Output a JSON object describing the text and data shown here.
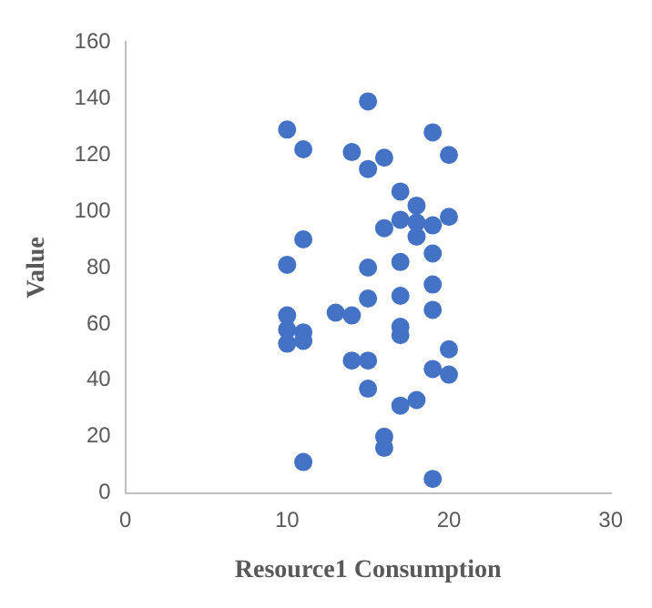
{
  "chart_data": {
    "type": "scatter",
    "xlabel": "Resource1 Consumption",
    "ylabel": "Value",
    "xlim": [
      0,
      30
    ],
    "xticks": [
      0,
      10,
      20,
      30
    ],
    "ylim": [
      0,
      160
    ],
    "yticks": [
      0,
      20,
      40,
      60,
      80,
      100,
      120,
      140,
      160
    ],
    "grid": false,
    "legend": false,
    "marker": "circle",
    "series": [
      {
        "color": "#4472c4",
        "x": [
          10,
          10,
          10,
          10,
          10,
          11,
          11,
          11,
          11,
          11,
          13,
          14,
          14,
          14,
          15,
          15,
          15,
          15,
          15,
          15,
          16,
          16,
          16,
          16,
          17,
          17,
          17,
          17,
          17,
          17,
          17,
          18,
          18,
          18,
          18,
          19,
          19,
          19,
          19,
          19,
          19,
          19,
          20,
          20,
          20,
          20
        ],
        "values": [
          129,
          81,
          63,
          58,
          53,
          122,
          90,
          57,
          54,
          11,
          64,
          121,
          63,
          47,
          139,
          115,
          80,
          69,
          47,
          37,
          119,
          94,
          20,
          16,
          107,
          97,
          82,
          70,
          59,
          56,
          31,
          102,
          96,
          91,
          33,
          128,
          95,
          85,
          74,
          65,
          44,
          5,
          120,
          98,
          51,
          42
        ]
      }
    ]
  }
}
